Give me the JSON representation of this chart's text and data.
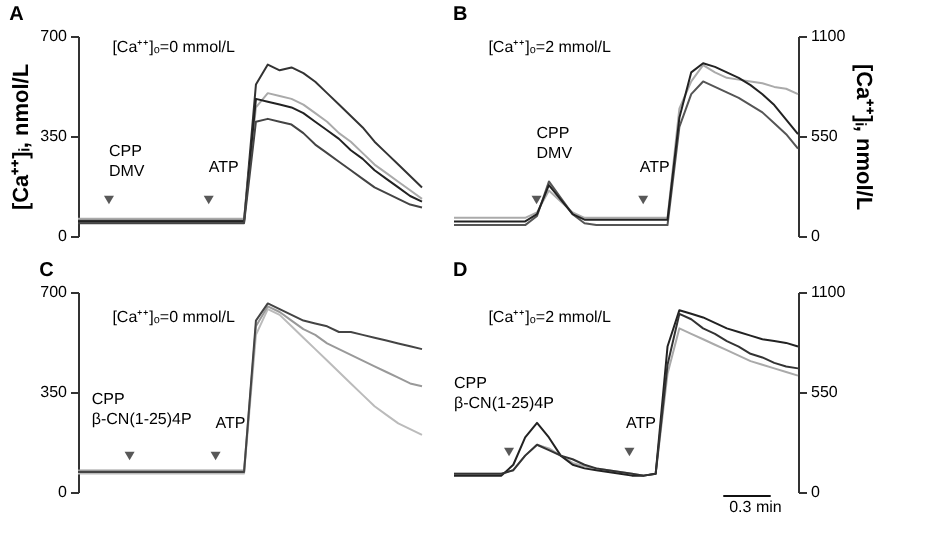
{
  "chart_data": [
    {
      "type": "line",
      "title": "A",
      "ylabel": "[Ca⁺⁺]ᵢ, nmol/L",
      "tick_labels": "y",
      "ylim": [
        0,
        700
      ],
      "yticks": [
        0,
        350,
        700
      ],
      "categories": [
        null,
        null,
        null,
        null,
        null,
        null,
        null,
        null,
        null,
        null,
        null,
        null,
        null,
        null,
        null,
        null,
        null,
        null,
        null,
        null,
        null,
        null,
        null,
        null,
        null,
        null,
        null,
        null,
        null,
        null
      ],
      "annotations": [
        "[Ca⁺⁺]ₒ=0 mmol/L",
        "CPP\nDMV",
        "ATP"
      ],
      "series": [
        {
          "color": "#333333",
          "values": [
            55,
            55,
            55,
            55,
            55,
            55,
            55,
            55,
            55,
            55,
            55,
            55,
            55,
            55,
            55,
            530,
            600,
            580,
            590,
            570,
            540,
            500,
            460,
            420,
            380,
            330,
            290,
            250,
            210,
            170
          ]
        },
        {
          "color": "#aaaaaa",
          "values": [
            60,
            60,
            60,
            60,
            60,
            60,
            60,
            60,
            60,
            60,
            60,
            60,
            60,
            60,
            60,
            450,
            500,
            490,
            480,
            460,
            430,
            400,
            360,
            330,
            290,
            250,
            220,
            190,
            160,
            130
          ]
        },
        {
          "color": "#222222",
          "values": [
            50,
            50,
            50,
            50,
            50,
            50,
            50,
            50,
            50,
            50,
            50,
            50,
            50,
            50,
            50,
            480,
            470,
            460,
            450,
            430,
            400,
            370,
            340,
            300,
            270,
            230,
            200,
            170,
            140,
            120
          ]
        },
        {
          "color": "#444444",
          "values": [
            45,
            45,
            45,
            45,
            45,
            45,
            45,
            45,
            45,
            45,
            45,
            45,
            45,
            45,
            45,
            400,
            410,
            400,
            390,
            360,
            320,
            290,
            260,
            230,
            200,
            170,
            150,
            130,
            110,
            100
          ]
        }
      ]
    },
    {
      "type": "line",
      "title": "B",
      "ylabel": "[Ca⁺⁺]ᵢ, nmol/L",
      "tick_labels": "y",
      "ylim": [
        0,
        1100
      ],
      "yticks": [
        0,
        550,
        1100
      ],
      "categories": [
        null,
        null,
        null,
        null,
        null,
        null,
        null,
        null,
        null,
        null,
        null,
        null,
        null,
        null,
        null,
        null,
        null,
        null,
        null,
        null,
        null,
        null,
        null,
        null,
        null,
        null,
        null,
        null,
        null,
        null
      ],
      "annotations": [
        "[Ca⁺⁺]ₒ=2 mmol/L",
        "CPP\nDMV",
        "ATP"
      ],
      "series": [
        {
          "color": "#aaaaaa",
          "values": [
            100,
            100,
            100,
            100,
            100,
            100,
            100,
            130,
            250,
            190,
            130,
            100,
            100,
            100,
            100,
            100,
            100,
            100,
            100,
            700,
            850,
            940,
            900,
            870,
            860,
            850,
            840,
            820,
            810,
            780
          ]
        },
        {
          "color": "#555555",
          "values": [
            60,
            60,
            60,
            60,
            60,
            60,
            60,
            110,
            300,
            210,
            120,
            70,
            60,
            60,
            60,
            60,
            60,
            60,
            60,
            600,
            780,
            850,
            820,
            790,
            760,
            720,
            680,
            620,
            560,
            480
          ]
        },
        {
          "color": "#222222",
          "values": [
            80,
            80,
            80,
            80,
            80,
            80,
            80,
            120,
            280,
            200,
            120,
            90,
            90,
            90,
            90,
            90,
            90,
            90,
            90,
            650,
            900,
            950,
            930,
            900,
            870,
            830,
            780,
            720,
            640,
            560
          ]
        }
      ]
    },
    {
      "type": "line",
      "title": "C",
      "tick_labels": "y",
      "ylim": [
        0,
        700
      ],
      "yticks": [
        0,
        350,
        700
      ],
      "categories": [
        null,
        null,
        null,
        null,
        null,
        null,
        null,
        null,
        null,
        null,
        null,
        null,
        null,
        null,
        null,
        null,
        null,
        null,
        null,
        null,
        null,
        null,
        null,
        null,
        null,
        null,
        null,
        null,
        null,
        null
      ],
      "annotations": [
        "[Ca⁺⁺]ₒ=0 mmol/L",
        "CPP\nβ-CN(1-25)4P",
        "ATP"
      ],
      "series": [
        {
          "color": "#bbbbbb",
          "values": [
            65,
            65,
            65,
            65,
            65,
            65,
            65,
            65,
            65,
            65,
            65,
            65,
            65,
            65,
            65,
            550,
            640,
            620,
            580,
            540,
            500,
            460,
            420,
            380,
            340,
            300,
            270,
            240,
            220,
            200
          ]
        },
        {
          "color": "#999999",
          "values": [
            75,
            75,
            75,
            75,
            75,
            75,
            75,
            75,
            75,
            75,
            75,
            75,
            75,
            75,
            75,
            580,
            650,
            630,
            600,
            570,
            550,
            520,
            500,
            480,
            460,
            440,
            420,
            400,
            380,
            370
          ]
        },
        {
          "color": "#444444",
          "values": [
            70,
            70,
            70,
            70,
            70,
            70,
            70,
            70,
            70,
            70,
            70,
            70,
            70,
            70,
            70,
            600,
            660,
            640,
            620,
            600,
            590,
            580,
            560,
            560,
            550,
            540,
            530,
            520,
            510,
            500
          ]
        }
      ]
    },
    {
      "type": "line",
      "title": "D",
      "tick_labels": "y",
      "ylim": [
        0,
        1100
      ],
      "yticks": [
        0,
        550,
        1100
      ],
      "categories": [
        null,
        null,
        null,
        null,
        null,
        null,
        null,
        null,
        null,
        null,
        null,
        null,
        null,
        null,
        null,
        null,
        null,
        null,
        null,
        null,
        null,
        null,
        null,
        null,
        null,
        null,
        null,
        null,
        null,
        null
      ],
      "annotations": [
        "[Ca⁺⁺]ₒ=2 mmol/L",
        "CPP\nβ-CN(1-25)4P",
        "ATP",
        "0.3 min"
      ],
      "series": [
        {
          "color": "#aaaaaa",
          "values": [
            100,
            100,
            100,
            100,
            100,
            120,
            200,
            260,
            240,
            200,
            160,
            140,
            130,
            120,
            110,
            100,
            90,
            100,
            650,
            900,
            870,
            840,
            810,
            780,
            750,
            720,
            700,
            680,
            660,
            640
          ]
        },
        {
          "color": "#222222",
          "values": [
            90,
            90,
            90,
            90,
            90,
            150,
            300,
            380,
            300,
            200,
            150,
            130,
            120,
            110,
            100,
            90,
            90,
            100,
            800,
            1000,
            980,
            960,
            930,
            900,
            880,
            860,
            840,
            830,
            820,
            800
          ]
        },
        {
          "color": "#333333",
          "values": [
            100,
            100,
            100,
            100,
            100,
            120,
            200,
            260,
            230,
            200,
            180,
            150,
            130,
            120,
            110,
            100,
            90,
            100,
            700,
            980,
            950,
            900,
            870,
            830,
            800,
            760,
            740,
            710,
            690,
            680
          ]
        }
      ]
    }
  ]
}
